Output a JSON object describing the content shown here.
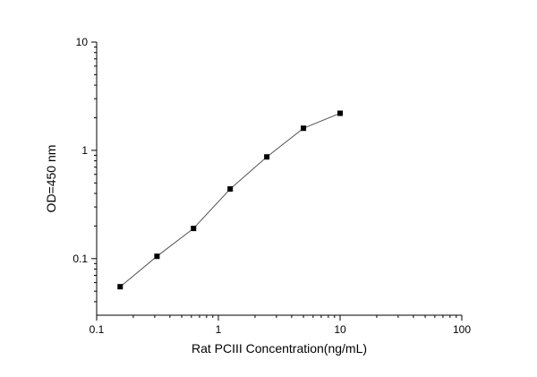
{
  "chart_data": {
    "type": "scatter",
    "title": "",
    "xlabel": "Rat PCIII  Concentration(ng/mL)",
    "ylabel": "OD=450 nm",
    "x_scale": "log",
    "y_scale": "log",
    "xlim": [
      0.1,
      100
    ],
    "ylim": [
      0.03,
      10
    ],
    "x_ticks": [
      {
        "value": 0.1,
        "label": "0.1"
      },
      {
        "value": 1,
        "label": "1"
      },
      {
        "value": 10,
        "label": "10"
      },
      {
        "value": 100,
        "label": "100"
      }
    ],
    "y_ticks": [
      {
        "value": 0.1,
        "label": "0.1"
      },
      {
        "value": 1,
        "label": "1"
      },
      {
        "value": 10,
        "label": "10"
      }
    ],
    "grid": false,
    "legend": "none",
    "marker": "square",
    "line_connected": true,
    "series": [
      {
        "x": [
          0.156,
          0.313,
          0.625,
          1.25,
          2.5,
          5,
          10
        ],
        "y": [
          0.055,
          0.105,
          0.19,
          0.44,
          0.87,
          1.6,
          2.2
        ]
      }
    ],
    "colors": {
      "marker": "#000000",
      "line": "#555555",
      "axis": "#000000"
    }
  }
}
